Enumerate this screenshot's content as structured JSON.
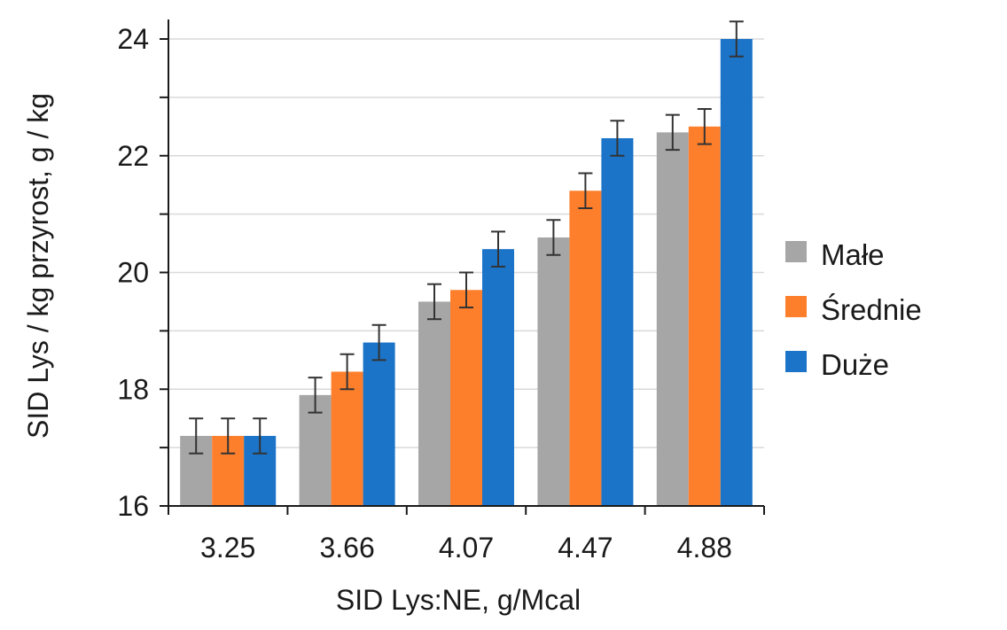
{
  "chart_data": {
    "type": "bar",
    "title": "",
    "xlabel": "SID Lys:NE, g/Mcal",
    "ylabel": "SID Lys / kg przyrost, g / kg",
    "categories": [
      "3.25",
      "3.66",
      "4.07",
      "4.47",
      "4.88"
    ],
    "ylim": [
      16,
      24
    ],
    "yticks": [
      "16",
      "18",
      "20",
      "22",
      "24"
    ],
    "grid": true,
    "legend_position": "right",
    "error_bar": 0.3,
    "series": [
      {
        "name": "Małe",
        "color": "#a6a6a6",
        "values": [
          17.2,
          17.9,
          19.5,
          20.6,
          22.4
        ]
      },
      {
        "name": "Średnie",
        "color": "#fd7f2b",
        "values": [
          17.2,
          18.3,
          19.7,
          21.4,
          22.5
        ]
      },
      {
        "name": "Duże",
        "color": "#1b74c8",
        "values": [
          17.2,
          18.8,
          20.4,
          22.3,
          24.0
        ]
      }
    ]
  }
}
